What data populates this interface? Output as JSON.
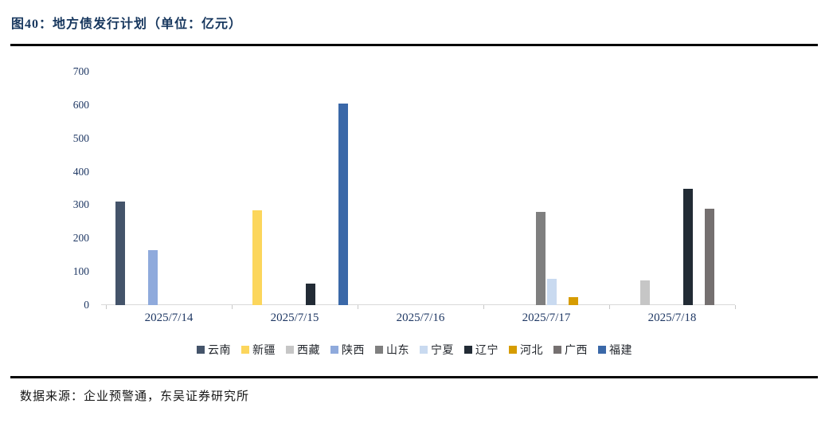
{
  "figure": {
    "title": "图40：地方债发行计划（单位：亿元）",
    "source": "数据来源：企业预警通，东吴证券研究所"
  },
  "chart_data": {
    "type": "bar",
    "title": "图40：地方债发行计划（单位：亿元）",
    "unit": "亿元",
    "categories": [
      "2025/7/14",
      "2025/7/15",
      "2025/7/16",
      "2025/7/17",
      "2025/7/18"
    ],
    "series": [
      {
        "name": "云南",
        "color": "#44546A",
        "values": [
          310,
          0,
          0,
          0,
          0
        ]
      },
      {
        "name": "新疆",
        "color": "#FCD65C",
        "values": [
          0,
          285,
          0,
          0,
          0
        ]
      },
      {
        "name": "西藏",
        "color": "#C6C6C6",
        "values": [
          0,
          0,
          0,
          0,
          75
        ]
      },
      {
        "name": "陕西",
        "color": "#8FAADC",
        "values": [
          165,
          0,
          0,
          0,
          0
        ]
      },
      {
        "name": "山东",
        "color": "#7F7F7F",
        "values": [
          0,
          0,
          0,
          280,
          0
        ]
      },
      {
        "name": "宁夏",
        "color": "#C9DAF0",
        "values": [
          0,
          0,
          0,
          80,
          0
        ]
      },
      {
        "name": "辽宁",
        "color": "#222B35",
        "values": [
          0,
          65,
          0,
          0,
          350
        ]
      },
      {
        "name": "河北",
        "color": "#D69C00",
        "values": [
          0,
          0,
          0,
          25,
          0
        ]
      },
      {
        "name": "广西",
        "color": "#757070",
        "values": [
          0,
          0,
          0,
          0,
          290
        ]
      },
      {
        "name": "福建",
        "color": "#3A68A8",
        "values": [
          0,
          605,
          0,
          0,
          0
        ]
      }
    ],
    "xlabel": "",
    "ylabel": "",
    "ylim": [
      0,
      700
    ],
    "yticks": [
      0,
      100,
      200,
      300,
      400,
      500,
      600,
      700
    ],
    "grid": false,
    "legend_position": "bottom"
  }
}
